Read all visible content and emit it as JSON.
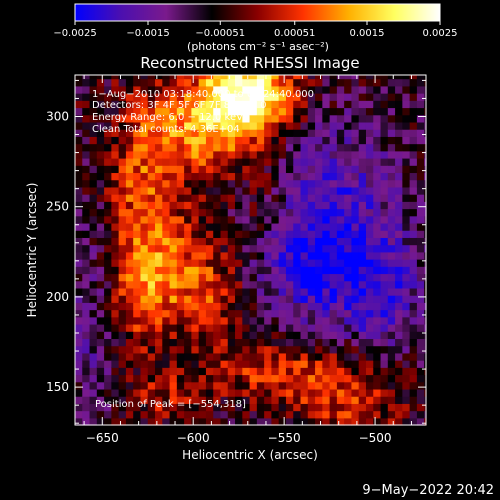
{
  "chart_data": {
    "type": "heatmap",
    "title": "Reconstructed RHESSI Image",
    "xlabel": "Heliocentric X (arcsec)",
    "ylabel": "Heliocentric Y (arcsec)",
    "xlim": [
      -665,
      -472
    ],
    "ylim": [
      129,
      323
    ],
    "xticks": [
      -650,
      -600,
      -550,
      -500
    ],
    "yticks": [
      150,
      200,
      250,
      300
    ],
    "xtick_labels": [
      "−650",
      "−600",
      "−550",
      "−500"
    ],
    "ytick_labels": [
      "150",
      "200",
      "250",
      "300"
    ],
    "colorbar": {
      "range": [
        -0.0025,
        0.0025
      ],
      "ticks": [
        -0.0025,
        -0.0015,
        -0.00051,
        0.00051,
        0.0015,
        0.0025
      ],
      "tick_labels": [
        "−0.0025",
        "−0.0015",
        "−0.00051",
        "0.00051",
        "0.0015",
        "0.0025"
      ],
      "units_label": "(photons cm⁻² s⁻¹ asec⁻²)",
      "colormap": [
        "#0000ff",
        "#4b0fb0",
        "#7a1a8c",
        "#000000",
        "#8a0000",
        "#ff3300",
        "#ffb000",
        "#ffff60",
        "#ffffff"
      ]
    },
    "grid": false,
    "annotations": [
      " 1−Aug−2010 03:18:40.000 to 03:24:40.000",
      "Detectors: 3F 4F 5F 6F 7F 8F; Att 0",
      "Energy Range: 6.0 − 12.0 keV",
      "Clean    Total counts: 4.36E+04"
    ],
    "peak_label": "Position of Peak = [−554,318]",
    "peak_position": [
      -554,
      318
    ],
    "field_description": {
      "bright_sources": [
        {
          "x": -570,
          "y": 312,
          "sx": 18,
          "sy": 16,
          "amp": 0.003
        },
        {
          "x": -598,
          "y": 292,
          "sx": 20,
          "sy": 18,
          "amp": 0.0016
        },
        {
          "x": -630,
          "y": 255,
          "sx": 12,
          "sy": 35,
          "amp": 0.0011
        },
        {
          "x": -605,
          "y": 222,
          "sx": 18,
          "sy": 22,
          "amp": 0.001
        },
        {
          "x": -628,
          "y": 200,
          "sx": 16,
          "sy": 20,
          "amp": 0.001
        },
        {
          "x": -585,
          "y": 200,
          "sx": 14,
          "sy": 16,
          "amp": 0.0008
        },
        {
          "x": -560,
          "y": 250,
          "sx": 10,
          "sy": 22,
          "amp": 0.0007
        },
        {
          "x": -550,
          "y": 160,
          "sx": 30,
          "sy": 12,
          "amp": 0.0011
        },
        {
          "x": -515,
          "y": 140,
          "sx": 20,
          "sy": 12,
          "amp": 0.0009
        },
        {
          "x": -615,
          "y": 145,
          "sx": 15,
          "sy": 10,
          "amp": 0.0007
        }
      ],
      "dark_sources": [
        {
          "x": -530,
          "y": 218,
          "sx": 30,
          "sy": 25,
          "amp": -0.0016
        },
        {
          "x": -525,
          "y": 265,
          "sx": 30,
          "sy": 30,
          "amp": -0.0009
        },
        {
          "x": -495,
          "y": 195,
          "sx": 15,
          "sy": 20,
          "amp": -0.0009
        },
        {
          "x": -655,
          "y": 190,
          "sx": 10,
          "sy": 40,
          "amp": -0.0008
        }
      ]
    }
  },
  "footer": {
    "timestamp": "9−May−2022 20:42"
  }
}
